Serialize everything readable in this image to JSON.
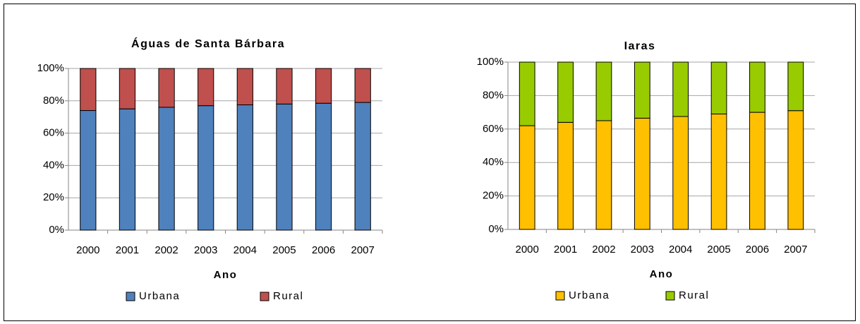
{
  "chart_data": [
    {
      "type": "bar",
      "stacked": true,
      "title": "Águas de Santa Bárbara",
      "x_label": "Ano",
      "categories": [
        "2000",
        "2001",
        "2002",
        "2003",
        "2004",
        "2005",
        "2006",
        "2007"
      ],
      "series": [
        {
          "name": "Urbana",
          "color": "#4f81bd",
          "values": [
            74,
            75,
            76,
            77,
            77.5,
            78,
            78.5,
            79
          ]
        },
        {
          "name": "Rural",
          "color": "#c0504d",
          "values": [
            26,
            25,
            24,
            23,
            22.5,
            22,
            21.5,
            21
          ]
        }
      ],
      "ylim": [
        0,
        100
      ],
      "yticks": [
        {
          "value": 0,
          "label": "0%"
        },
        {
          "value": 20,
          "label": "20%"
        },
        {
          "value": 40,
          "label": "40%"
        },
        {
          "value": 60,
          "label": "60%"
        },
        {
          "value": 80,
          "label": "80%"
        },
        {
          "value": 100,
          "label": "100%"
        }
      ],
      "grid": true,
      "legend": "bottom"
    },
    {
      "type": "bar",
      "stacked": true,
      "title": "Iaras",
      "x_label": "Ano",
      "categories": [
        "2000",
        "2001",
        "2002",
        "2003",
        "2004",
        "2005",
        "2006",
        "2007"
      ],
      "series": [
        {
          "name": "Urbana",
          "color": "#ffc000",
          "values": [
            62,
            64,
            65,
            66.5,
            67.5,
            69,
            70,
            71
          ]
        },
        {
          "name": "Rural",
          "color": "#99cc00",
          "values": [
            38,
            36,
            35,
            33.5,
            32.5,
            31,
            30,
            29
          ]
        }
      ],
      "ylim": [
        0,
        100
      ],
      "yticks": [
        {
          "value": 0,
          "label": "0%"
        },
        {
          "value": 20,
          "label": "20%"
        },
        {
          "value": 40,
          "label": "40%"
        },
        {
          "value": 60,
          "label": "60%"
        },
        {
          "value": 80,
          "label": "80%"
        },
        {
          "value": 100,
          "label": "100%"
        }
      ],
      "grid": true,
      "legend": "bottom"
    }
  ]
}
